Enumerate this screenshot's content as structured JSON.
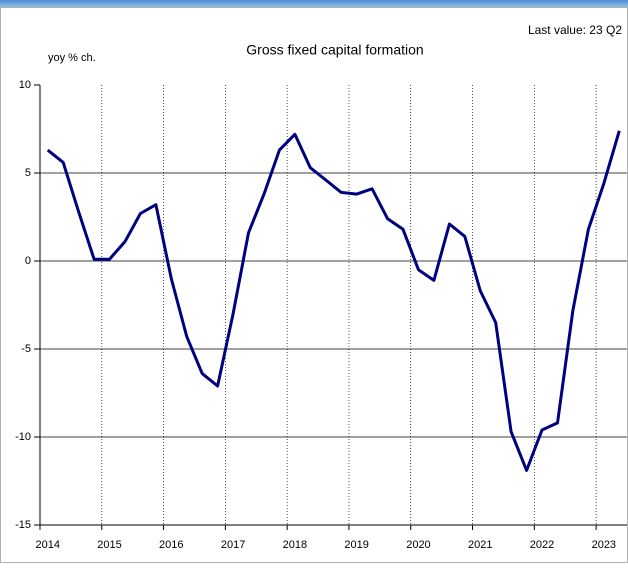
{
  "chart_data": {
    "type": "line",
    "title": "Gross fixed capital formation",
    "subtitle": "Last value: 23 Q2",
    "y_label": "yoy % ch.",
    "categories": [
      "2014",
      null,
      null,
      null,
      "2015",
      null,
      null,
      null,
      "2016",
      null,
      null,
      null,
      "2017",
      null,
      null,
      null,
      "2018",
      null,
      null,
      null,
      "2019",
      null,
      null,
      null,
      "2020",
      null,
      null,
      null,
      "2021",
      null,
      null,
      null,
      "2022",
      null,
      null,
      null,
      "2023",
      null
    ],
    "series": [
      {
        "name": "Gross fixed capital formation",
        "color": "#000080",
        "values": [
          6.3,
          5.6,
          2.8,
          0.1,
          0.1,
          1.1,
          2.7,
          3.2,
          -1.0,
          -4.3,
          -6.4,
          -7.1,
          -3.0,
          1.6,
          3.8,
          6.3,
          7.2,
          5.3,
          4.6,
          3.9,
          3.8,
          4.1,
          2.4,
          1.8,
          -0.5,
          -1.1,
          2.1,
          1.4,
          -1.7,
          -3.5,
          -9.7,
          -11.9,
          -9.6,
          -9.2,
          -2.8,
          1.8,
          4.4,
          7.4
        ]
      }
    ],
    "ylim": [
      -15,
      10
    ],
    "yticks": [
      -15,
      -10,
      -5,
      0,
      5,
      10
    ],
    "grid": true
  }
}
